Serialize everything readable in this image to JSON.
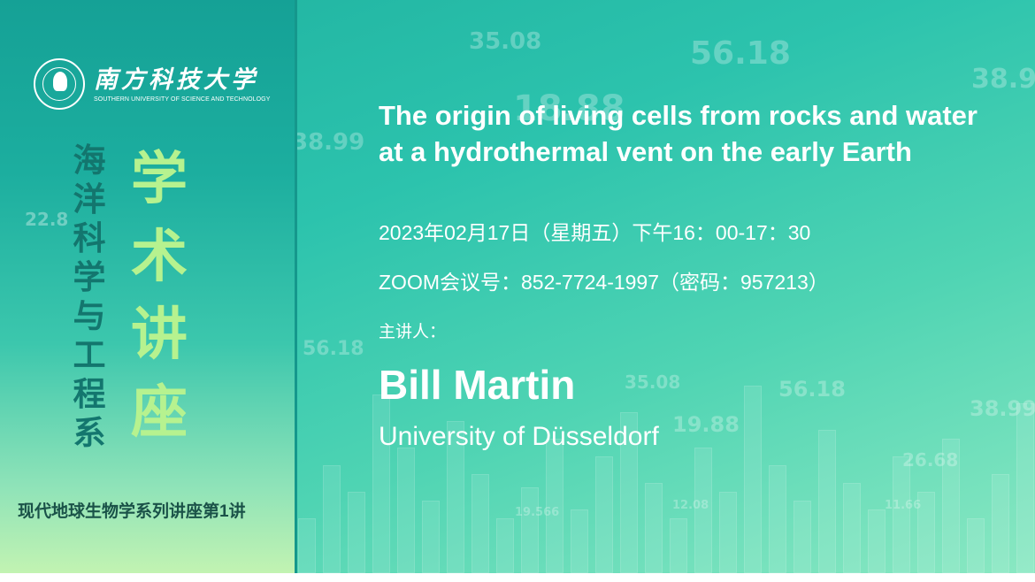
{
  "background_numbers": [
    "35.08",
    "56.18",
    "38.9",
    "38.99",
    "18.88",
    "22.8",
    "56.18",
    "35.08",
    "19.88",
    "56.18",
    "38.99",
    "26.68",
    "11.66",
    "19.566",
    "12.08"
  ],
  "logo": {
    "name_cn": "南方科技大学",
    "name_en": "SOUTHERN UNIVERSITY OF SCIENCE AND TECHNOLOGY"
  },
  "department": "海洋科学与工程系",
  "event_type": "学术讲座",
  "series": "现代地球生物学系列讲座第1讲",
  "talk": {
    "title": "The origin of living cells from rocks and water at a hydrothermal vent on the early Earth",
    "datetime": "2023年02月17日（星期五）下午16：00-17：30",
    "zoom": "ZOOM会议号：852-7724-1997（密码：957213）",
    "speaker_label": "主讲人：",
    "speaker": "Bill Martin",
    "affiliation": "University of Düsseldorf"
  },
  "colors": {
    "left_panel_top": "#15a196",
    "left_panel_bottom": "#c2f3b2",
    "department": "#13766e",
    "event_type": "#b6f28f",
    "series": "#1a5248"
  }
}
